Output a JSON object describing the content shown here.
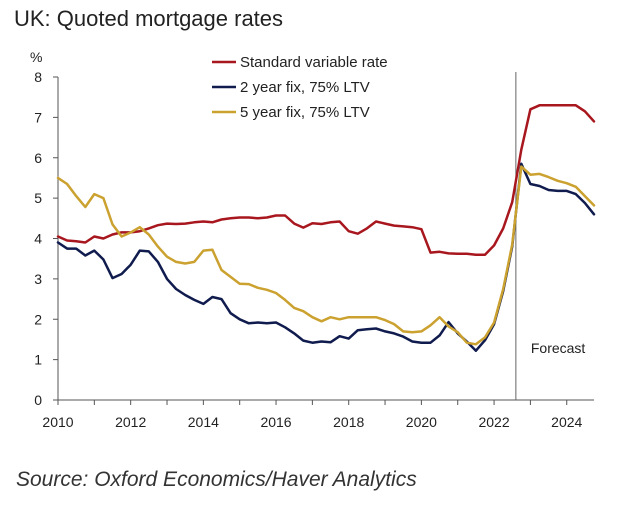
{
  "title": "UK: Quoted mortgage rates",
  "source": "Source: Oxford Economics/Haver Analytics",
  "chart_data": {
    "type": "line",
    "title": "UK: Quoted mortgage rates",
    "ylabel": "%",
    "xlabel": "",
    "xlim": [
      2010,
      2024.75
    ],
    "ylim": [
      0,
      8
    ],
    "x_ticks": [
      "2010",
      "2012",
      "2014",
      "2016",
      "2018",
      "2020",
      "2022",
      "2024"
    ],
    "y_ticks": [
      "0",
      "1",
      "2",
      "3",
      "4",
      "5",
      "6",
      "7",
      "8"
    ],
    "grid": false,
    "legend_position": "top-center",
    "annotations": [
      {
        "x": 2022.6,
        "label": "Forecast"
      }
    ],
    "series": [
      {
        "name": "Standard variable rate",
        "color": "#A8161E",
        "x": [
          2010,
          2010.25,
          2010.5,
          2010.75,
          2011,
          2011.25,
          2011.5,
          2011.75,
          2012,
          2012.25,
          2012.5,
          2012.75,
          2013,
          2013.25,
          2013.5,
          2013.75,
          2014,
          2014.25,
          2014.5,
          2014.75,
          2015,
          2015.25,
          2015.5,
          2015.75,
          2016,
          2016.25,
          2016.5,
          2016.75,
          2017,
          2017.25,
          2017.5,
          2017.75,
          2018,
          2018.25,
          2018.5,
          2018.75,
          2019,
          2019.25,
          2019.5,
          2019.75,
          2020,
          2020.25,
          2020.5,
          2020.75,
          2021,
          2021.25,
          2021.5,
          2021.75,
          2022,
          2022.25,
          2022.5,
          2022.75,
          2023,
          2023.25,
          2023.5,
          2023.75,
          2024,
          2024.25,
          2024.5,
          2024.75
        ],
        "values": [
          4.05,
          3.95,
          3.93,
          3.9,
          4.05,
          4.0,
          4.1,
          4.15,
          4.15,
          4.18,
          4.25,
          4.33,
          4.37,
          4.36,
          4.37,
          4.4,
          4.42,
          4.4,
          4.47,
          4.5,
          4.52,
          4.52,
          4.5,
          4.52,
          4.57,
          4.57,
          4.37,
          4.27,
          4.38,
          4.36,
          4.4,
          4.42,
          4.18,
          4.12,
          4.25,
          4.42,
          4.37,
          4.32,
          4.3,
          4.28,
          4.23,
          3.65,
          3.67,
          3.63,
          3.62,
          3.62,
          3.6,
          3.6,
          3.83,
          4.25,
          4.9,
          6.2,
          7.2,
          7.3,
          7.3,
          7.3,
          7.3,
          7.3,
          7.15,
          6.9
        ]
      },
      {
        "name": "2 year fix, 75% LTV",
        "color": "#101B4E",
        "x": [
          2010,
          2010.25,
          2010.5,
          2010.75,
          2011,
          2011.25,
          2011.5,
          2011.75,
          2012,
          2012.25,
          2012.5,
          2012.75,
          2013,
          2013.25,
          2013.5,
          2013.75,
          2014,
          2014.25,
          2014.5,
          2014.75,
          2015,
          2015.25,
          2015.5,
          2015.75,
          2016,
          2016.25,
          2016.5,
          2016.75,
          2017,
          2017.25,
          2017.5,
          2017.75,
          2018,
          2018.25,
          2018.5,
          2018.75,
          2019,
          2019.25,
          2019.5,
          2019.75,
          2020,
          2020.25,
          2020.5,
          2020.75,
          2021,
          2021.25,
          2021.5,
          2021.75,
          2022,
          2022.25,
          2022.5,
          2022.75,
          2023,
          2023.25,
          2023.5,
          2023.75,
          2024,
          2024.25,
          2024.5,
          2024.75
        ],
        "values": [
          3.9,
          3.75,
          3.75,
          3.58,
          3.7,
          3.48,
          3.02,
          3.12,
          3.35,
          3.7,
          3.68,
          3.42,
          3.0,
          2.75,
          2.6,
          2.48,
          2.38,
          2.55,
          2.5,
          2.15,
          2.0,
          1.9,
          1.92,
          1.9,
          1.92,
          1.8,
          1.65,
          1.47,
          1.42,
          1.45,
          1.43,
          1.58,
          1.52,
          1.73,
          1.75,
          1.77,
          1.7,
          1.65,
          1.57,
          1.45,
          1.42,
          1.42,
          1.6,
          1.93,
          1.65,
          1.45,
          1.22,
          1.48,
          1.88,
          2.7,
          3.8,
          5.85,
          5.35,
          5.3,
          5.2,
          5.18,
          5.18,
          5.1,
          4.88,
          4.6
        ]
      },
      {
        "name": "5 year fix, 75% LTV",
        "color": "#CBA12F",
        "x": [
          2010,
          2010.25,
          2010.5,
          2010.75,
          2011,
          2011.25,
          2011.5,
          2011.75,
          2012,
          2012.25,
          2012.5,
          2012.75,
          2013,
          2013.25,
          2013.5,
          2013.75,
          2014,
          2014.25,
          2014.5,
          2014.75,
          2015,
          2015.25,
          2015.5,
          2015.75,
          2016,
          2016.25,
          2016.5,
          2016.75,
          2017,
          2017.25,
          2017.5,
          2017.75,
          2018,
          2018.25,
          2018.5,
          2018.75,
          2019,
          2019.25,
          2019.5,
          2019.75,
          2020,
          2020.25,
          2020.5,
          2020.75,
          2021,
          2021.25,
          2021.5,
          2021.75,
          2022,
          2022.25,
          2022.5,
          2022.75,
          2023,
          2023.25,
          2023.5,
          2023.75,
          2024,
          2024.25,
          2024.5,
          2024.75
        ],
        "values": [
          5.5,
          5.35,
          5.05,
          4.78,
          5.1,
          5.0,
          4.35,
          4.05,
          4.15,
          4.28,
          4.1,
          3.8,
          3.55,
          3.42,
          3.38,
          3.42,
          3.7,
          3.72,
          3.22,
          3.05,
          2.88,
          2.87,
          2.78,
          2.73,
          2.65,
          2.48,
          2.28,
          2.2,
          2.05,
          1.95,
          2.05,
          2.0,
          2.05,
          2.05,
          2.05,
          2.05,
          1.98,
          1.88,
          1.7,
          1.68,
          1.7,
          1.85,
          2.05,
          1.82,
          1.68,
          1.42,
          1.38,
          1.55,
          1.92,
          2.75,
          3.85,
          5.78,
          5.58,
          5.6,
          5.52,
          5.43,
          5.37,
          5.28,
          5.05,
          4.82
        ]
      }
    ]
  }
}
